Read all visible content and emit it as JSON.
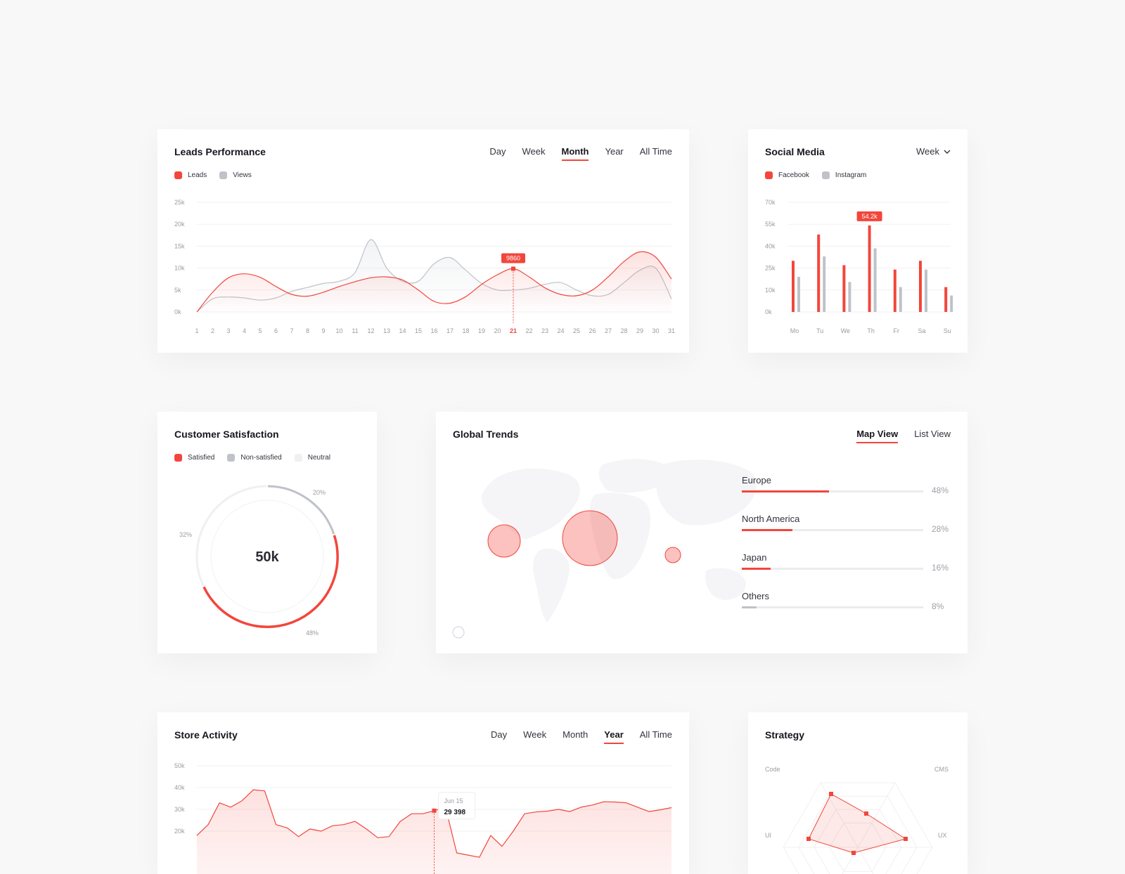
{
  "leads": {
    "title": "Leads Performance",
    "filters": [
      {
        "label": "Day",
        "active": false
      },
      {
        "label": "Week",
        "active": false
      },
      {
        "label": "Month",
        "active": true
      },
      {
        "label": "Year",
        "active": false
      },
      {
        "label": "All Time",
        "active": false
      }
    ],
    "legend": [
      {
        "label": "Leads",
        "color": "#f2463c"
      },
      {
        "label": "Views",
        "color": "#bfc2c8"
      }
    ],
    "tooltip": "9860",
    "highlight_day": "21"
  },
  "social": {
    "title": "Social Media",
    "dropdown": "Week",
    "legend": [
      {
        "label": "Facebook",
        "color": "#f2463c"
      },
      {
        "label": "Instagram",
        "color": "#bfc2c8"
      }
    ],
    "tooltip": "54.2k"
  },
  "satisfaction": {
    "title": "Customer Satisfaction",
    "legend": [
      {
        "label": "Satisfied",
        "color": "#f2463c"
      },
      {
        "label": "Non-satisfied",
        "color": "#bfc2c8"
      },
      {
        "label": "Neutral",
        "color": "#f0f0f2"
      }
    ],
    "center": "50k",
    "labels": {
      "non_satisfied": "20%",
      "neutral": "32%",
      "satisfied": "48%"
    }
  },
  "global": {
    "title": "Global Trends",
    "tabs": [
      {
        "label": "Map View",
        "active": true
      },
      {
        "label": "List View",
        "active": false
      }
    ],
    "regions": [
      {
        "label": "Europe",
        "value": 48,
        "pct": "48%",
        "color": "red"
      },
      {
        "label": "North America",
        "value": 28,
        "pct": "28%",
        "color": "red"
      },
      {
        "label": "Japan",
        "value": 16,
        "pct": "16%",
        "color": "red"
      },
      {
        "label": "Others",
        "value": 8,
        "pct": "8%",
        "color": "grey"
      }
    ]
  },
  "store": {
    "title": "Store Activity",
    "filters": [
      {
        "label": "Day",
        "active": false
      },
      {
        "label": "Week",
        "active": false
      },
      {
        "label": "Month",
        "active": false
      },
      {
        "label": "Year",
        "active": true
      },
      {
        "label": "All Time",
        "active": false
      }
    ],
    "tooltip": {
      "date": "Jun 15",
      "value": "29 398"
    }
  },
  "strategy": {
    "title": "Strategy",
    "axes": [
      "Code",
      "CMS",
      "UI",
      "UX"
    ]
  },
  "chart_data": [
    {
      "type": "area",
      "title": "Leads Performance",
      "x": [
        1,
        2,
        3,
        4,
        5,
        6,
        7,
        8,
        9,
        10,
        11,
        12,
        13,
        14,
        15,
        16,
        17,
        18,
        19,
        20,
        21,
        22,
        23,
        24,
        25,
        26,
        27,
        28,
        29,
        30,
        31
      ],
      "x_tick_labels": [
        "1",
        "2",
        "3",
        "4",
        "5",
        "6",
        "7",
        "8",
        "9",
        "10",
        "11",
        "12",
        "13",
        "14",
        "15",
        "16",
        "17",
        "18",
        "19",
        "20",
        "21",
        "22",
        "23",
        "24",
        "25",
        "26",
        "27",
        "28",
        "29",
        "30",
        "31"
      ],
      "ylim": [
        0,
        25000
      ],
      "y_tick_labels": [
        "0k",
        "5k",
        "10k",
        "15k",
        "20k",
        "25k"
      ],
      "series": [
        {
          "name": "Leads",
          "color": "#f2463c",
          "values": [
            0,
            4500,
            7800,
            8700,
            7900,
            5800,
            4000,
            3600,
            4500,
            5800,
            6900,
            7800,
            8000,
            7300,
            5000,
            2400,
            2000,
            3500,
            6300,
            8500,
            9860,
            8000,
            5500,
            4000,
            3700,
            5000,
            8000,
            11500,
            13700,
            12500,
            7500
          ]
        },
        {
          "name": "Views",
          "color": "#bfc2c8",
          "values": [
            0,
            3000,
            3400,
            3200,
            2700,
            3200,
            4700,
            5600,
            6500,
            7000,
            9000,
            16500,
            10000,
            7000,
            7000,
            11000,
            12400,
            9500,
            6500,
            5000,
            5000,
            5400,
            6300,
            6700,
            5000,
            3700,
            4000,
            6700,
            9500,
            10000,
            3000
          ]
        }
      ],
      "grid": true
    },
    {
      "type": "bar",
      "title": "Social Media",
      "categories": [
        "Mo",
        "Tu",
        "We",
        "Th",
        "Fr",
        "Sa",
        "Su"
      ],
      "ylim": [
        0,
        70000
      ],
      "y_tick_labels": [
        "0k",
        "10k",
        "25k",
        "40k",
        "55k",
        "70k"
      ],
      "y_tick_values": [
        0,
        10000,
        25000,
        40000,
        55000,
        70000
      ],
      "series": [
        {
          "name": "Facebook",
          "color": "#f2463c",
          "values": [
            30000,
            48000,
            27000,
            54200,
            24000,
            30000,
            12000
          ]
        },
        {
          "name": "Instagram",
          "color": "#bfc2c8",
          "values": [
            19000,
            33000,
            15500,
            38500,
            12000,
            24000,
            7500
          ]
        }
      ],
      "grid": true
    },
    {
      "type": "pie",
      "title": "Customer Satisfaction",
      "slices": [
        {
          "name": "Satisfied",
          "value": 48,
          "color": "#f2463c"
        },
        {
          "name": "Non-satisfied",
          "value": 20,
          "color": "#bfc2c8"
        },
        {
          "name": "Neutral",
          "value": 32,
          "color": "#f0f0f2"
        }
      ]
    },
    {
      "type": "area",
      "title": "Store Activity",
      "ylim": [
        0,
        50000
      ],
      "y_tick_labels": [
        "20k",
        "30k",
        "40k",
        "50k"
      ],
      "y_tick_values": [
        20000,
        30000,
        40000,
        50000
      ],
      "series": [
        {
          "name": "Store",
          "color": "#f2463c",
          "values": [
            18000,
            23000,
            33000,
            31000,
            34000,
            39000,
            38500,
            23000,
            21500,
            17500,
            21000,
            20000,
            22500,
            23000,
            24500,
            21000,
            17000,
            17500,
            24500,
            28000,
            28000,
            29398,
            31000,
            10000,
            9000,
            8000,
            18000,
            13000,
            20000,
            28000,
            28800,
            29200,
            30000,
            29000,
            31000,
            32000,
            33500,
            33400,
            33000,
            31000,
            29000,
            29800,
            30800
          ]
        }
      ],
      "grid": true
    },
    {
      "type": "radar",
      "title": "Strategy",
      "axes": [
        "Code",
        "CMS",
        "UI",
        "UX"
      ],
      "grid": true
    }
  ]
}
